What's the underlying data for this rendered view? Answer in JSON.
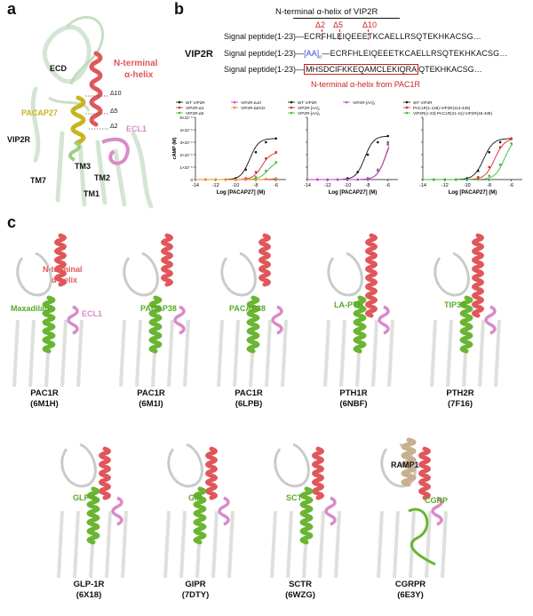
{
  "panels": {
    "a": "a",
    "b": "b",
    "c": "c"
  },
  "panel_a": {
    "ecd": "ECD",
    "nterm": "N-terminal",
    "alpha_helix": "α-helix",
    "ligand": "PACAP27",
    "receptor": "VIP2R",
    "ecl1": "ECL1",
    "d10": "Δ10",
    "d5": "Δ5",
    "d2": "Δ2",
    "tm3": "TM3",
    "tm2": "TM2",
    "tm7": "TM7",
    "tm1": "TM1"
  },
  "panel_b": {
    "header": "N-terminal α-helix of VIP2R",
    "receptor": "VIP2R",
    "d2": "Δ2",
    "d5": "Δ5",
    "d10": "Δ10",
    "row1_prefix": "Signal peptide(1-23)—",
    "row1_seq": "ECRFHLEIQEEETKCAELLRSQTEKHKACSG…",
    "row2_prefix": "Signal peptide(1-23)—",
    "row2_aa": "[AA]",
    "row2_n": "n",
    "row2_seq": "—ECRFHLEIQEEETKCAELLRSQTEKHKACSG…",
    "row3_prefix": "Signal peptide(1-23)—",
    "row3_boxed": "MHSDCIFKKEQAMCLEKIQRA",
    "row3_seq": "QTEKHKACSG…",
    "footer": "N-terminal α-helix from PAC1R"
  },
  "panel_c": {
    "structures": [
      {
        "receptor": "PAC1R",
        "pdb": "(6M1H)",
        "ligand": "Maxadilan"
      },
      {
        "receptor": "PAC1R",
        "pdb": "(6M1I)",
        "ligand": "PACAP38"
      },
      {
        "receptor": "PAC1R",
        "pdb": "(6LPB)",
        "ligand": "PACAP38"
      },
      {
        "receptor": "PTH1R",
        "pdb": "(6NBF)",
        "ligand": "LA-PTH"
      },
      {
        "receptor": "PTH2R",
        "pdb": "(7F16)",
        "ligand": "TIP39"
      },
      {
        "receptor": "GLP-1R",
        "pdb": "(6X18)",
        "ligand": "GLP-1"
      },
      {
        "receptor": "GIPR",
        "pdb": "(7DTY)",
        "ligand": "GIP"
      },
      {
        "receptor": "SCTR",
        "pdb": "(6WZG)",
        "ligand": "SCT"
      },
      {
        "receptor": "CGRPR",
        "pdb": "(6E3Y)",
        "ligand": "CGRP"
      }
    ],
    "nterm": "N-terminal",
    "alpha_helix": "α-helix",
    "ecl1": "ECL1",
    "ramp1": "RAMP1"
  },
  "colors": {
    "receptor": "#c8ccc8",
    "nterm_helix": "#e0575a",
    "ligand": "#6ab531",
    "ecl1": "#d98ac8",
    "ramp": "#c7b08f",
    "pacap27": "#c8b420"
  },
  "chart_data": [
    {
      "type": "line",
      "xlabel": "Log [PACAP27] (M)",
      "ylabel": "cAMP (M)",
      "xlim": [
        -14,
        -5
      ],
      "ylim": [
        0,
        5e-09
      ],
      "xticks": [
        "-14",
        "-12",
        "-10",
        "-8",
        "-6"
      ],
      "yticks": [
        "0",
        "1×10⁻⁹",
        "2×10⁻⁹",
        "3×10⁻⁹",
        "4×10⁻⁹",
        "5×10⁻⁹"
      ],
      "series": [
        {
          "name": "WT VIP2R",
          "color": "#111111",
          "logEC50": -8.6,
          "top": 3.3e-09,
          "x": [
            -13,
            -12,
            -11,
            -10,
            -9,
            -8,
            -7,
            -6
          ],
          "y": [
            0,
            0,
            0,
            1e-10,
            8e-10,
            2.2e-09,
            3e-09,
            3.3e-09
          ]
        },
        {
          "name": "VIP2R-Δ2",
          "color": "#e02424",
          "logEC50": -7.4,
          "top": 2.2e-09,
          "x": [
            -13,
            -12,
            -11,
            -10,
            -9,
            -8,
            -7,
            -6
          ],
          "y": [
            0,
            0,
            0,
            0,
            1e-10,
            6e-10,
            1.7e-09,
            2.2e-09
          ]
        },
        {
          "name": "VIP2R-Δ5",
          "color": "#3bb83b",
          "logEC50": -6.8,
          "top": 1.5e-09,
          "x": [
            -13,
            -12,
            -11,
            -10,
            -9,
            -8,
            -7,
            -6
          ],
          "y": [
            0,
            0,
            0,
            0,
            0,
            2e-10,
            7e-10,
            1.4e-09
          ]
        },
        {
          "name": "VIP2R-Δ10",
          "color": "#c03fd6",
          "logEC50": -6.0,
          "top": 2e-10,
          "x": [
            -13,
            -12,
            -11,
            -10,
            -9,
            -8,
            -7,
            -6
          ],
          "y": [
            0,
            0,
            0,
            0,
            0,
            0,
            5e-11,
            1e-10
          ]
        },
        {
          "name": "VIP2R-ΔECD",
          "color": "#f08a1a",
          "logEC50": -6.0,
          "top": 1.5e-10,
          "x": [
            -13,
            -12,
            -11,
            -10,
            -9,
            -8,
            -7,
            -6
          ],
          "y": [
            0,
            0,
            0,
            0,
            0,
            0,
            3e-11,
            8e-11
          ]
        }
      ]
    },
    {
      "type": "line",
      "xlabel": "Log [PACAP27] (M)",
      "xlim": [
        -14,
        -5
      ],
      "ylim": [
        0,
        5e-09
      ],
      "xticks": [
        "-14",
        "-12",
        "-10",
        "-8",
        "-6"
      ],
      "series": [
        {
          "name": "WT VIP2R",
          "color": "#111111",
          "logEC50": -8.3,
          "top": 3.5e-09,
          "x": [
            -13,
            -12,
            -11,
            -10,
            -9,
            -8,
            -7,
            -6
          ],
          "y": [
            0,
            0,
            0,
            1e-10,
            6e-10,
            2e-09,
            3e-09,
            3.5e-09
          ]
        },
        {
          "name": "VIP2R-[AA]₁",
          "color": "#e02424",
          "logEC50": -6.2,
          "top": 4e-09,
          "x": [
            -13,
            -12,
            -11,
            -10,
            -9,
            -8,
            -7,
            -6
          ],
          "y": [
            0,
            0,
            0,
            0,
            0,
            1e-10,
            8e-10,
            3e-09
          ]
        },
        {
          "name": "VIP2R-[AA]₂",
          "color": "#3bb83b",
          "logEC50": -6.2,
          "top": 3.9e-09,
          "x": [
            -13,
            -12,
            -11,
            -10,
            -9,
            -8,
            -7,
            -6
          ],
          "y": [
            0,
            0,
            0,
            0,
            0,
            1e-10,
            8e-10,
            2.9e-09
          ]
        },
        {
          "name": "VIP2R-[AA]₃",
          "color": "#c03fd6",
          "logEC50": -6.2,
          "top": 3.8e-09,
          "x": [
            -13,
            -12,
            -11,
            -10,
            -9,
            -8,
            -7,
            -6
          ],
          "y": [
            0,
            0,
            0,
            0,
            0,
            1e-10,
            7e-10,
            2.8e-09
          ]
        }
      ]
    },
    {
      "type": "line",
      "xlabel": "Log [PACAP27] (M)",
      "xlim": [
        -14,
        -5
      ],
      "ylim": [
        0,
        5e-09
      ],
      "xticks": [
        "-14",
        "-12",
        "-10",
        "-8",
        "-6"
      ],
      "series": [
        {
          "name": "WT VIP2R",
          "color": "#111111",
          "logEC50": -8.5,
          "top": 3.3e-09,
          "x": [
            -13,
            -12,
            -11,
            -10,
            -9,
            -8,
            -7,
            -6
          ],
          "y": [
            0,
            0,
            0,
            1e-10,
            7e-10,
            2.2e-09,
            3e-09,
            3.3e-09
          ]
        },
        {
          "name": "PAC1R(1-138)-VIP2R(113-438)",
          "color": "#e02424",
          "logEC50": -7.5,
          "top": 3.3e-09,
          "x": [
            -13,
            -12,
            -11,
            -10,
            -9,
            -8,
            -7,
            -6
          ],
          "y": [
            0,
            0,
            0,
            0,
            2e-10,
            1e-09,
            2.6e-09,
            3.3e-09
          ]
        },
        {
          "name": "VIP2R(1-23)-PAC1R(21-41)-VIP2R(45-438)",
          "color": "#3bb83b",
          "logEC50": -6.6,
          "top": 3.4e-09,
          "x": [
            -13,
            -12,
            -11,
            -10,
            -9,
            -8,
            -7,
            -6
          ],
          "y": [
            0,
            0,
            0,
            0,
            0,
            3e-10,
            1.2e-09,
            2.9e-09
          ]
        }
      ]
    }
  ]
}
